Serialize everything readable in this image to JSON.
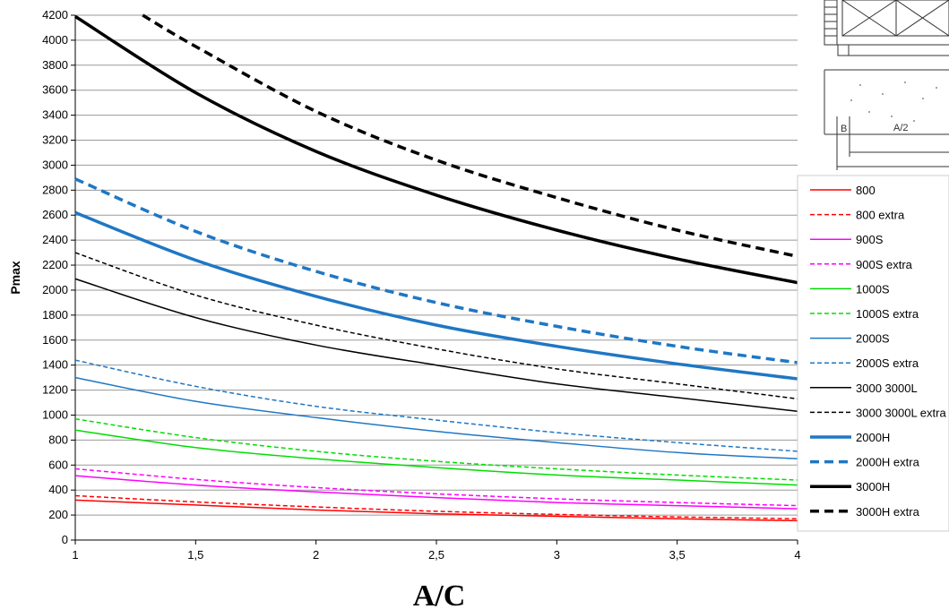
{
  "chart_data": {
    "type": "line",
    "xlabel": "A/C",
    "ylabel": "Pmax",
    "xlim": [
      1,
      4
    ],
    "ylim": [
      0,
      4200
    ],
    "x_ticks": [
      "1",
      "1,5",
      "2",
      "2,5",
      "3",
      "3,5",
      "4"
    ],
    "y_ticks": [
      "0",
      "200",
      "400",
      "600",
      "800",
      "1000",
      "1200",
      "1400",
      "1600",
      "1800",
      "2000",
      "2200",
      "2400",
      "2600",
      "2800",
      "3000",
      "3200",
      "3400",
      "3600",
      "3800",
      "4000",
      "4200"
    ],
    "grid": "horizontal",
    "legend_position": "right",
    "series": [
      {
        "name": "800",
        "color": "#ff0000",
        "dash": "solid",
        "weight": "thin",
        "x": [
          1,
          1.5,
          2,
          2.5,
          3,
          3.5,
          4
        ],
        "values": [
          320,
          280,
          240,
          210,
          190,
          170,
          155
        ]
      },
      {
        "name": "800 extra",
        "color": "#ff0000",
        "dash": "dashed",
        "weight": "thin",
        "x": [
          1,
          1.5,
          2,
          2.5,
          3,
          3.5,
          4
        ],
        "values": [
          355,
          305,
          265,
          230,
          205,
          185,
          170
        ]
      },
      {
        "name": "900S",
        "color": "#ff00ff",
        "dash": "solid",
        "weight": "thin",
        "x": [
          1,
          1.5,
          2,
          2.5,
          3,
          3.5,
          4
        ],
        "values": [
          515,
          440,
          385,
          340,
          300,
          275,
          250
        ]
      },
      {
        "name": "900S extra",
        "color": "#ff00ff",
        "dash": "dashed",
        "weight": "thin",
        "x": [
          1,
          1.5,
          2,
          2.5,
          3,
          3.5,
          4
        ],
        "values": [
          570,
          485,
          420,
          370,
          330,
          300,
          275
        ]
      },
      {
        "name": "1000S",
        "color": "#00dd00",
        "dash": "solid",
        "weight": "thin",
        "x": [
          1,
          1.5,
          2,
          2.5,
          3,
          3.5,
          4
        ],
        "values": [
          880,
          740,
          650,
          580,
          520,
          480,
          440
        ]
      },
      {
        "name": "1000S extra",
        "color": "#00dd00",
        "dash": "dashed",
        "weight": "thin",
        "x": [
          1,
          1.5,
          2,
          2.5,
          3,
          3.5,
          4
        ],
        "values": [
          970,
          820,
          710,
          630,
          570,
          520,
          480
        ]
      },
      {
        "name": "2000S",
        "color": "#1f77c4",
        "dash": "solid",
        "weight": "thin",
        "x": [
          1,
          1.5,
          2,
          2.5,
          3,
          3.5,
          4
        ],
        "values": [
          1300,
          1110,
          980,
          870,
          780,
          700,
          650
        ]
      },
      {
        "name": "2000S extra",
        "color": "#1f77c4",
        "dash": "dashed",
        "weight": "thin",
        "x": [
          1,
          1.5,
          2,
          2.5,
          3,
          3.5,
          4
        ],
        "values": [
          1440,
          1230,
          1070,
          960,
          860,
          780,
          710
        ]
      },
      {
        "name": "3000 3000L",
        "color": "#000000",
        "dash": "solid",
        "weight": "thin",
        "x": [
          1,
          1.5,
          2,
          2.5,
          3,
          3.5,
          4
        ],
        "values": [
          2090,
          1780,
          1560,
          1400,
          1250,
          1140,
          1030
        ]
      },
      {
        "name": "3000 3000L extra",
        "color": "#000000",
        "dash": "dashed",
        "weight": "thin",
        "x": [
          1,
          1.5,
          2,
          2.5,
          3,
          3.5,
          4
        ],
        "values": [
          2300,
          1960,
          1720,
          1530,
          1370,
          1250,
          1130
        ]
      },
      {
        "name": "2000H",
        "color": "#1f77c4",
        "dash": "solid",
        "weight": "thick",
        "x": [
          1,
          1.5,
          2,
          2.5,
          3,
          3.5,
          4
        ],
        "values": [
          2620,
          2240,
          1950,
          1720,
          1550,
          1410,
          1290
        ]
      },
      {
        "name": "2000H extra",
        "color": "#1f77c4",
        "dash": "dashed",
        "weight": "thick",
        "x": [
          1,
          1.5,
          2,
          2.5,
          3,
          3.5,
          4
        ],
        "values": [
          2890,
          2470,
          2150,
          1900,
          1710,
          1550,
          1420
        ]
      },
      {
        "name": "3000H",
        "color": "#000000",
        "dash": "solid",
        "weight": "thick",
        "x": [
          1,
          1.5,
          2,
          2.5,
          3,
          3.5,
          4
        ],
        "values": [
          4190,
          3580,
          3110,
          2760,
          2480,
          2250,
          2060
        ]
      },
      {
        "name": "3000H extra",
        "color": "#000000",
        "dash": "dashed",
        "weight": "thick",
        "x": [
          1.28,
          1.5,
          2,
          2.5,
          3,
          3.5,
          4
        ],
        "values": [
          4200,
          3950,
          3430,
          3040,
          2740,
          2480,
          2270
        ]
      }
    ],
    "legend": [
      "800",
      "800 extra",
      "900S",
      "900S extra",
      "1000S",
      "1000S extra",
      "2000S",
      "2000S extra",
      "3000 3000L",
      "3000 3000L extra",
      "2000H",
      "2000H extra",
      "3000H",
      "3000H extra"
    ]
  },
  "inset_drawing": {
    "label_b": "B",
    "label_a_half": "A/2"
  }
}
